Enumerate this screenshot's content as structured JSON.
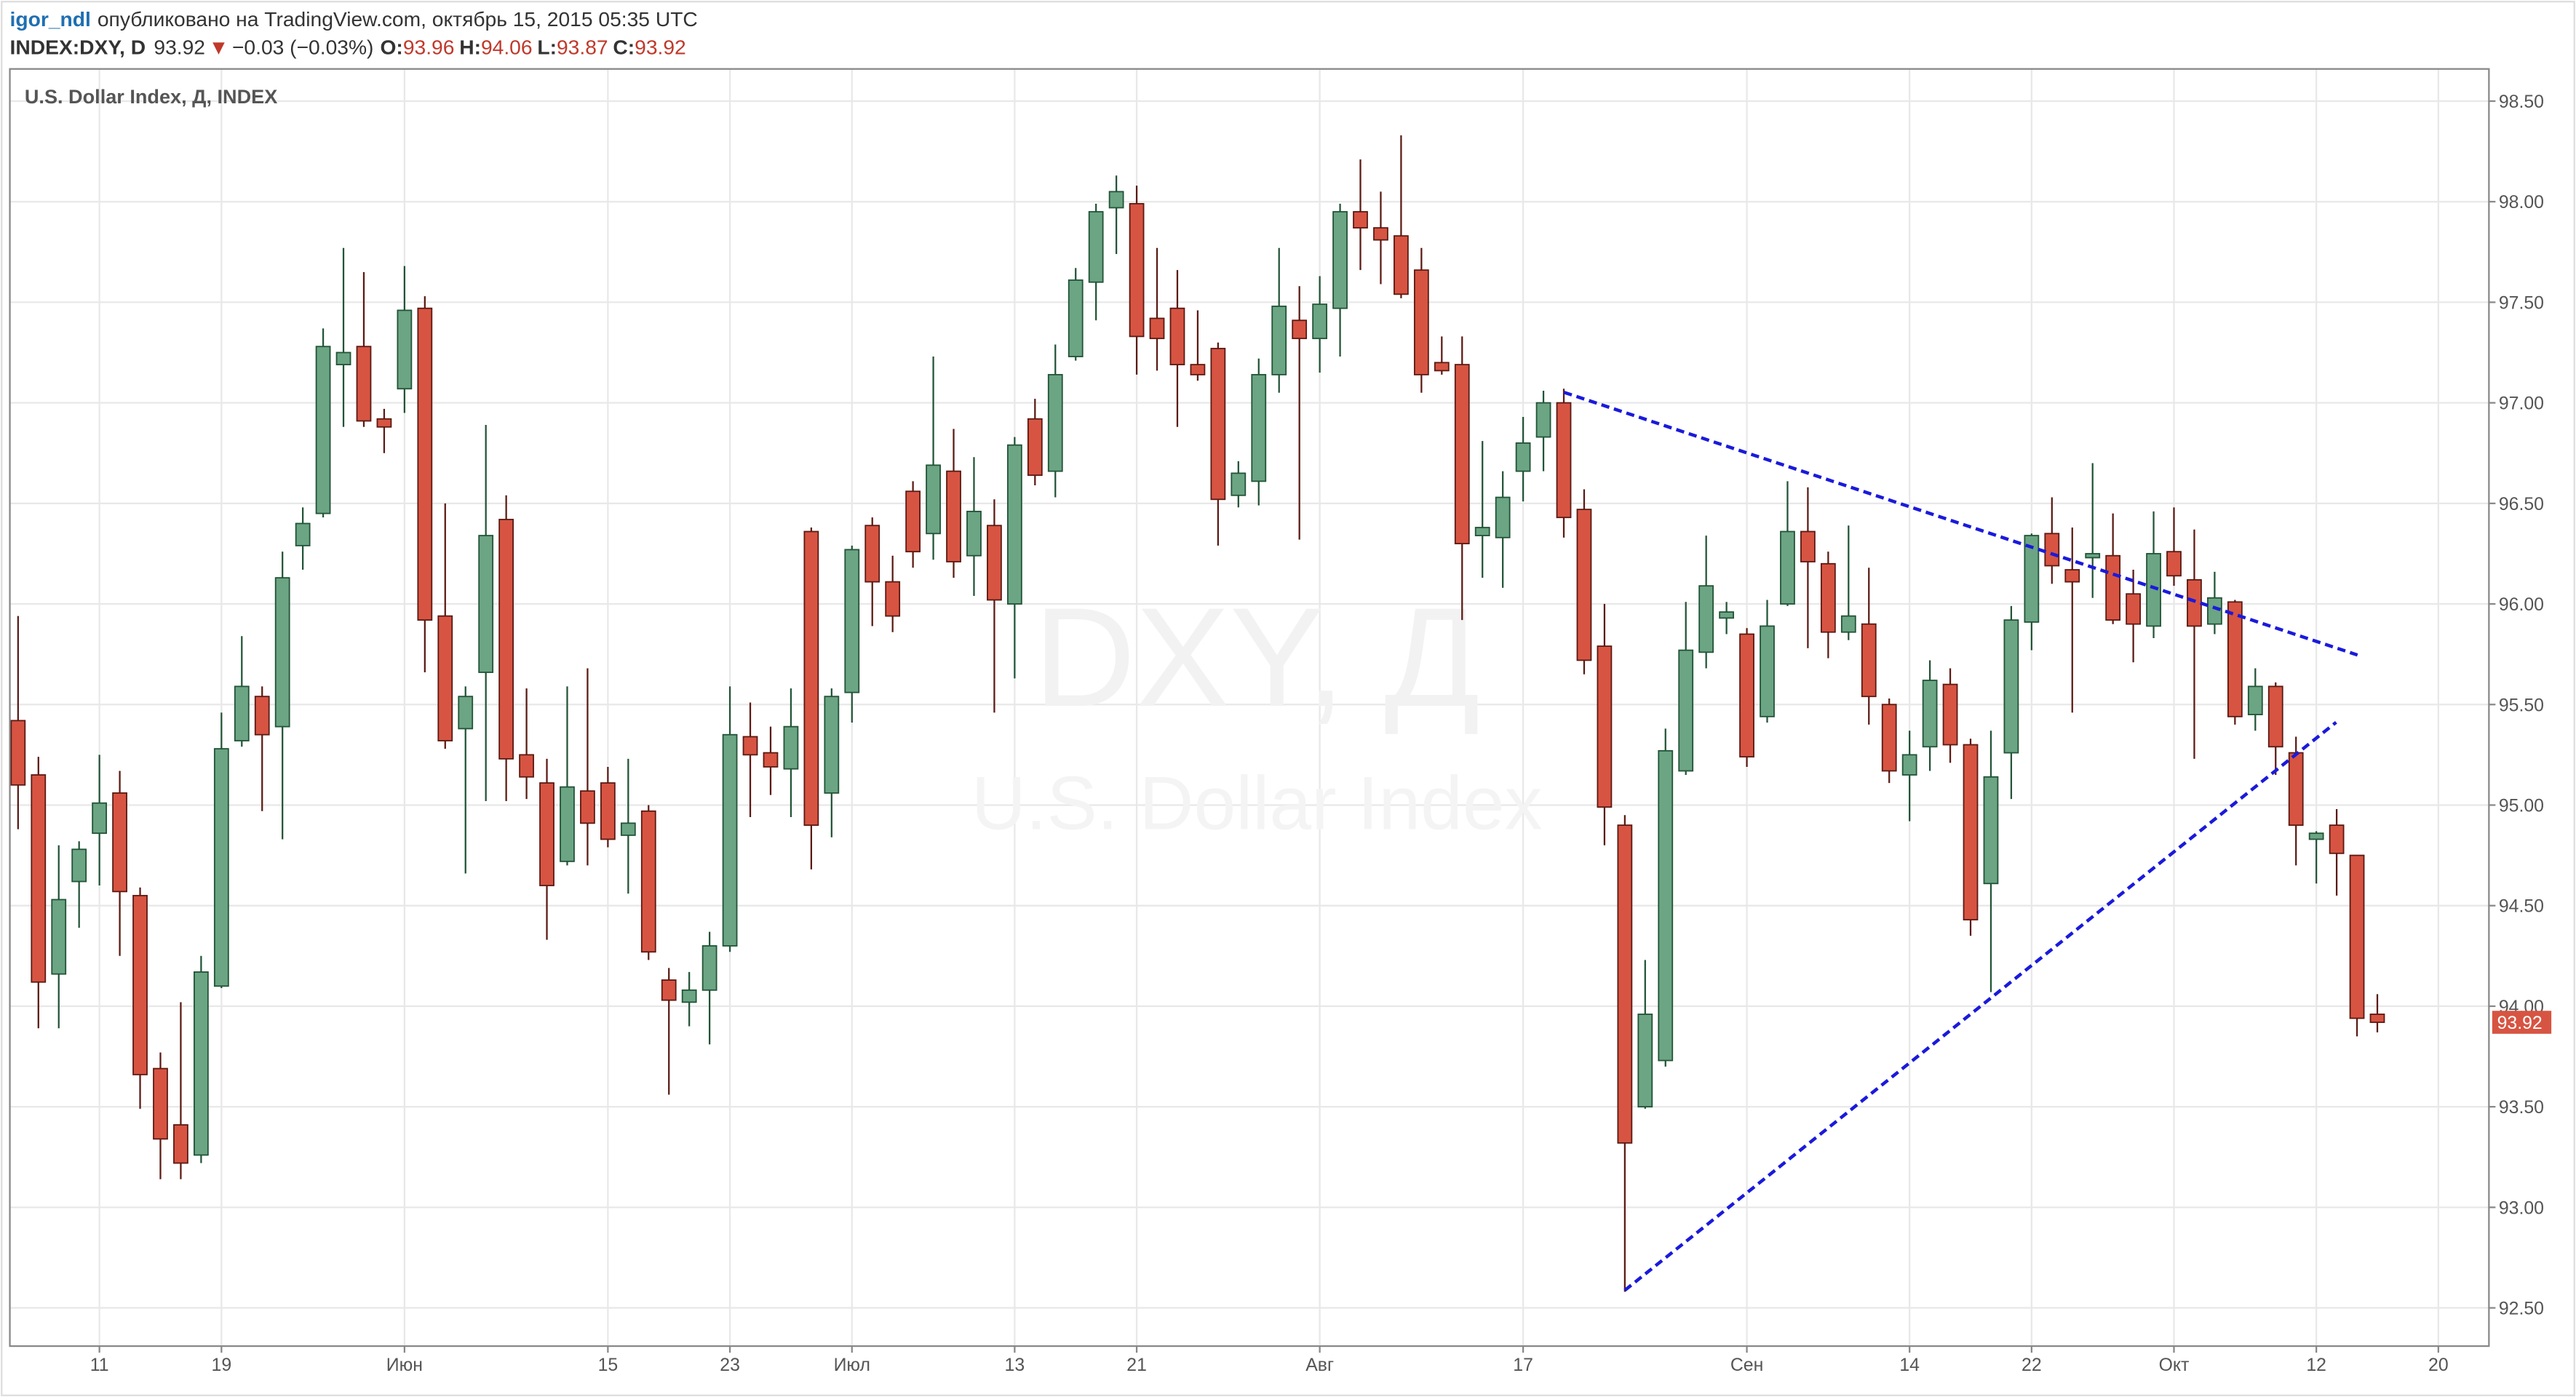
{
  "header": {
    "author": "igor_ndl",
    "published": "опубликовано на TradingView.com, октябрь 15, 2015 05:35 UTC",
    "symbol": "INDEX:DXY, D",
    "last": "93.92",
    "arrow": "▼",
    "change": "−0.03 (−0.03%)",
    "o_label": "O:",
    "o": "93.96",
    "h_label": "H:",
    "h": "94.06",
    "l_label": "L:",
    "l": "93.87",
    "c_label": "C:",
    "c": "93.92"
  },
  "chart_data": {
    "type": "candlestick",
    "title": "U.S. Dollar Index, Д, INDEX",
    "watermark": [
      "DXY, Д",
      "U.S. Dollar Index"
    ],
    "up_color": "#6ba583",
    "up_border": "#225437",
    "down_color": "#d75442",
    "down_border": "#5b1a13",
    "grid": true,
    "categories": [
      null,
      null,
      null,
      null,
      "11",
      null,
      null,
      null,
      null,
      null,
      "19",
      null,
      null,
      null,
      null,
      null,
      null,
      null,
      null,
      "Июн",
      null,
      null,
      null,
      null,
      null,
      null,
      null,
      null,
      null,
      "15",
      null,
      null,
      null,
      null,
      null,
      "23",
      null,
      null,
      null,
      null,
      null,
      "Июл",
      null,
      null,
      null,
      null,
      null,
      null,
      null,
      "13",
      null,
      null,
      null,
      null,
      null,
      "21",
      null,
      null,
      null,
      null,
      null,
      null,
      null,
      null,
      "Авг",
      null,
      null,
      null,
      null,
      null,
      null,
      null,
      null,
      null,
      "17",
      null,
      null,
      null,
      null,
      null,
      null,
      null,
      null,
      null,
      null,
      "Сен",
      null,
      null,
      null,
      null,
      null,
      null,
      null,
      "14",
      null,
      null,
      null,
      null,
      null,
      "22",
      null,
      null,
      null,
      null,
      null,
      null,
      "Окт",
      null,
      null,
      null,
      null,
      null,
      null,
      "12",
      null,
      null,
      null,
      null,
      null,
      "20"
    ],
    "open": [
      95.42,
      95.15,
      94.16,
      94.62,
      94.86,
      95.06,
      94.55,
      93.69,
      93.41,
      93.26,
      94.1,
      95.32,
      95.54,
      95.39,
      96.29,
      96.45,
      97.19,
      97.28,
      96.92,
      97.07,
      97.47,
      95.94,
      95.38,
      95.66,
      96.42,
      95.25,
      95.11,
      94.72,
      95.07,
      95.11,
      94.85,
      94.97,
      94.13,
      94.02,
      94.08,
      94.3,
      95.34,
      95.26,
      95.18,
      96.36,
      95.06,
      95.56,
      96.39,
      96.11,
      96.56,
      96.35,
      96.66,
      96.24,
      96.39,
      96.0,
      96.92,
      96.66,
      97.23,
      97.6,
      97.97,
      97.99,
      97.42,
      97.47,
      97.19,
      97.27,
      96.54,
      96.61,
      97.14,
      97.41,
      97.32,
      97.47,
      97.95,
      97.87,
      97.83,
      97.66,
      97.2,
      97.19,
      96.34,
      96.33,
      96.66,
      96.83,
      97.0,
      96.47,
      95.79,
      94.9,
      93.5,
      93.73,
      95.17,
      95.76,
      95.93,
      95.85,
      95.44,
      96.0,
      96.36,
      96.2,
      95.86,
      95.9,
      95.5,
      95.15,
      95.29,
      95.6,
      95.3,
      94.61,
      95.26,
      95.91,
      96.35,
      96.17,
      96.23,
      96.24,
      96.05,
      95.89,
      96.26,
      96.12,
      95.9,
      96.01,
      95.45,
      95.59,
      95.26,
      94.83,
      94.9,
      94.75,
      93.96,
      null,
      null,
      null
    ],
    "high": [
      95.94,
      95.24,
      94.8,
      94.82,
      95.25,
      95.17,
      94.59,
      93.77,
      94.02,
      94.25,
      95.46,
      95.84,
      95.59,
      96.26,
      96.48,
      97.37,
      97.77,
      97.65,
      96.97,
      97.68,
      97.53,
      96.5,
      95.59,
      96.89,
      96.54,
      95.58,
      95.23,
      95.59,
      95.68,
      95.19,
      95.23,
      95.0,
      94.19,
      94.17,
      94.37,
      95.59,
      95.51,
      95.39,
      95.58,
      96.38,
      95.58,
      96.29,
      96.43,
      96.24,
      96.61,
      97.23,
      96.87,
      96.73,
      96.52,
      96.83,
      97.02,
      97.29,
      97.67,
      97.99,
      98.13,
      98.08,
      97.77,
      97.66,
      97.46,
      97.3,
      96.71,
      97.22,
      97.77,
      97.58,
      97.63,
      97.99,
      98.21,
      98.05,
      98.33,
      97.77,
      97.33,
      97.33,
      96.81,
      96.66,
      96.93,
      97.06,
      97.07,
      96.57,
      96.0,
      94.95,
      94.23,
      95.38,
      96.01,
      96.34,
      96.01,
      95.88,
      96.02,
      96.61,
      96.58,
      96.26,
      96.39,
      96.18,
      95.53,
      95.37,
      95.72,
      95.68,
      95.33,
      95.37,
      95.99,
      96.35,
      96.53,
      96.38,
      96.7,
      96.45,
      96.17,
      96.46,
      96.48,
      96.37,
      96.16,
      96.02,
      95.68,
      95.61,
      95.34,
      94.87,
      94.98,
      94.75,
      94.06,
      null,
      null,
      null
    ],
    "low": [
      94.88,
      93.89,
      93.89,
      94.39,
      94.6,
      94.25,
      93.49,
      93.14,
      93.14,
      93.22,
      94.09,
      95.29,
      94.97,
      94.83,
      96.17,
      96.43,
      96.88,
      96.88,
      96.75,
      96.95,
      95.66,
      95.28,
      94.66,
      95.02,
      95.02,
      95.03,
      94.33,
      94.7,
      94.7,
      94.79,
      94.56,
      94.23,
      93.56,
      93.9,
      93.81,
      94.27,
      94.94,
      95.05,
      94.94,
      94.68,
      94.84,
      95.41,
      95.89,
      95.86,
      96.18,
      96.22,
      96.13,
      96.04,
      95.46,
      95.63,
      96.59,
      96.53,
      97.21,
      97.41,
      97.74,
      97.14,
      97.16,
      96.88,
      97.11,
      96.29,
      96.48,
      96.49,
      97.05,
      96.32,
      97.15,
      97.23,
      97.66,
      97.59,
      97.52,
      97.05,
      97.14,
      95.92,
      96.13,
      96.08,
      96.51,
      96.66,
      96.33,
      95.65,
      94.8,
      92.58,
      93.49,
      93.7,
      95.15,
      95.68,
      95.85,
      95.19,
      95.41,
      95.99,
      95.78,
      95.73,
      95.82,
      95.4,
      95.11,
      94.92,
      95.17,
      95.21,
      94.35,
      94.07,
      95.03,
      95.77,
      96.1,
      95.46,
      96.03,
      95.9,
      95.71,
      95.83,
      96.09,
      95.23,
      95.85,
      95.4,
      95.37,
      95.15,
      94.7,
      94.61,
      94.55,
      93.85,
      93.87,
      null,
      null,
      null
    ],
    "close": [
      95.1,
      94.12,
      94.53,
      94.78,
      95.01,
      94.57,
      93.66,
      93.34,
      93.22,
      94.17,
      95.28,
      95.59,
      95.35,
      96.13,
      96.4,
      97.28,
      97.25,
      96.91,
      96.88,
      97.46,
      95.92,
      95.32,
      95.54,
      96.34,
      95.23,
      95.14,
      94.6,
      95.09,
      94.91,
      94.83,
      94.91,
      94.27,
      94.03,
      94.08,
      94.3,
      95.35,
      95.25,
      95.19,
      95.39,
      94.9,
      95.54,
      96.27,
      96.11,
      95.94,
      96.26,
      96.69,
      96.21,
      96.46,
      96.02,
      96.79,
      96.64,
      97.14,
      97.61,
      97.95,
      98.05,
      97.33,
      97.32,
      97.19,
      97.14,
      96.52,
      96.65,
      97.14,
      97.48,
      97.32,
      97.49,
      97.95,
      97.87,
      97.81,
      97.54,
      97.14,
      97.16,
      96.3,
      96.38,
      96.53,
      96.8,
      97.0,
      96.43,
      95.72,
      94.99,
      93.32,
      93.96,
      95.27,
      95.77,
      96.09,
      95.96,
      95.24,
      95.89,
      96.36,
      96.21,
      95.86,
      95.94,
      95.54,
      95.17,
      95.25,
      95.62,
      95.3,
      94.43,
      95.14,
      95.92,
      96.34,
      96.19,
      96.11,
      96.25,
      95.92,
      95.9,
      96.25,
      96.14,
      95.89,
      96.03,
      95.44,
      95.59,
      95.29,
      94.9,
      94.86,
      94.76,
      93.94,
      93.92,
      null,
      null,
      null
    ],
    "ylim": [
      92.31,
      98.66
    ],
    "yticks": [
      {
        "value": 92.5,
        "label": "92.50"
      },
      {
        "value": 93,
        "label": "93.00"
      },
      {
        "value": 93.5,
        "label": "93.50"
      },
      {
        "value": 94,
        "label": "94.00"
      },
      {
        "value": 94.5,
        "label": "94.50"
      },
      {
        "value": 95,
        "label": "95.00"
      },
      {
        "value": 95.5,
        "label": "95.50"
      },
      {
        "value": 96,
        "label": "96.00"
      },
      {
        "value": 96.5,
        "label": "96.50"
      },
      {
        "value": 97,
        "label": "97.00"
      },
      {
        "value": 97.5,
        "label": "97.50"
      },
      {
        "value": 98,
        "label": "98.00"
      },
      {
        "value": 98.5,
        "label": "98.50"
      }
    ]
  }
}
